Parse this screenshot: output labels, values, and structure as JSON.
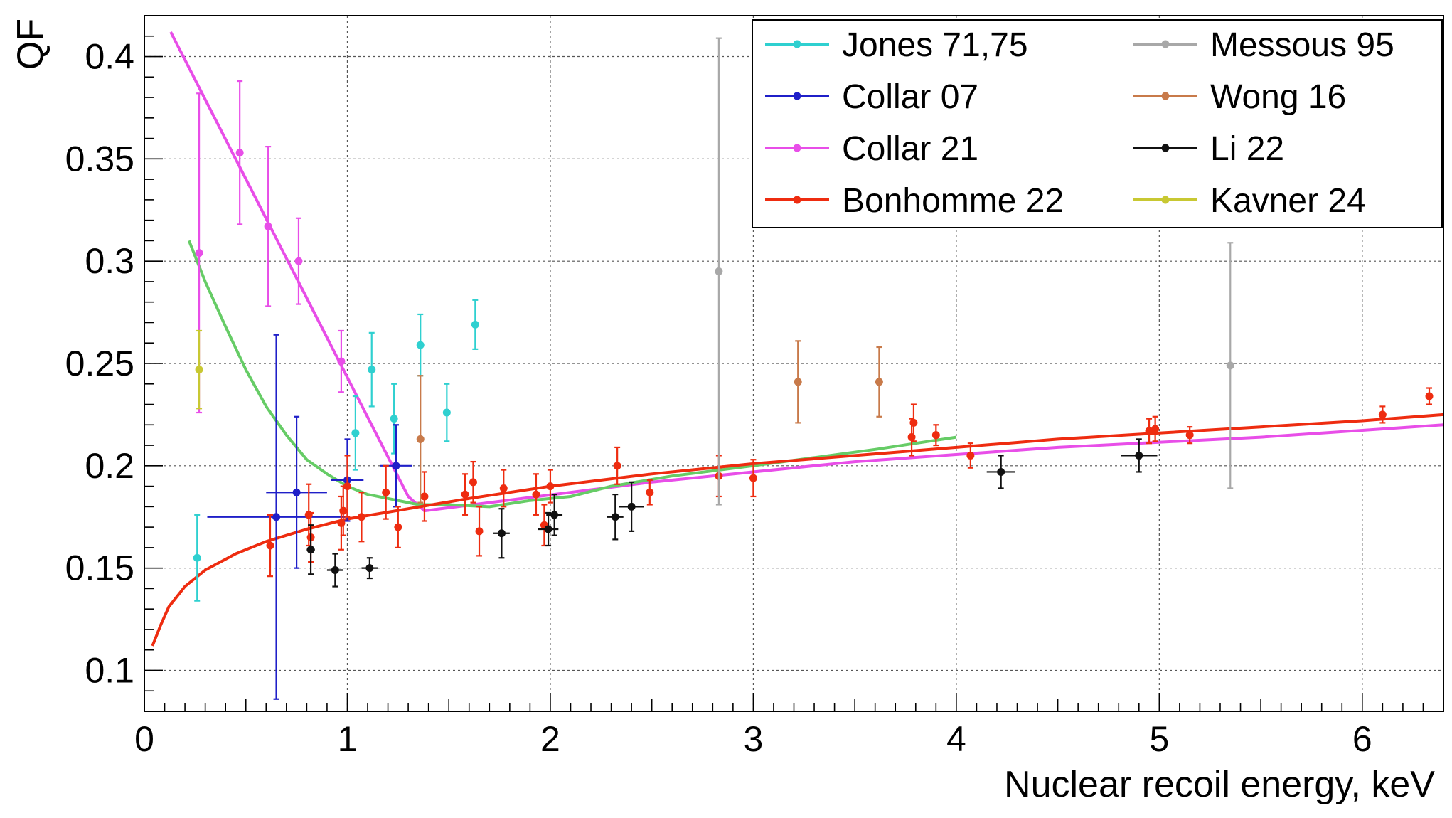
{
  "chart_data": {
    "type": "scatter",
    "xlabel": "Nuclear recoil energy, keV",
    "ylabel": "QF",
    "xlim": [
      0,
      6.4
    ],
    "ylim": [
      0.08,
      0.42
    ],
    "x_ticks": [
      "0",
      "1",
      "2",
      "3",
      "4",
      "5",
      "6"
    ],
    "y_ticks": [
      "0.1",
      "0.15",
      "0.2",
      "0.25",
      "0.3",
      "0.35",
      "0.4"
    ],
    "grid": true,
    "legend": {
      "placement": "top-right",
      "entries": [
        "Jones 71,75",
        "Collar 07",
        "Collar 21",
        "Bonhomme 22",
        "Messous 95",
        "Wong 16",
        "Li 22",
        "Kavner 24"
      ]
    },
    "series": [
      {
        "name": "Jones 71,75",
        "color": "#2fd0d0",
        "points": [
          {
            "x": 0.26,
            "y": 0.155,
            "yerr": 0.021
          },
          {
            "x": 1.04,
            "y": 0.216,
            "yerr": 0.018
          },
          {
            "x": 1.12,
            "y": 0.247,
            "yerr": 0.018
          },
          {
            "x": 1.23,
            "y": 0.223,
            "yerr": 0.017
          },
          {
            "x": 1.36,
            "y": 0.259,
            "yerr": 0.015
          },
          {
            "x": 1.49,
            "y": 0.226,
            "yerr": 0.014
          },
          {
            "x": 1.63,
            "y": 0.269,
            "yerr": 0.012
          }
        ]
      },
      {
        "name": "Collar 07",
        "color": "#1f1fc8",
        "points": [
          {
            "x": 0.65,
            "y": 0.175,
            "yerr": 0.089,
            "xerr": 0.34
          },
          {
            "x": 0.75,
            "y": 0.187,
            "yerr": 0.037,
            "xerr": 0.15
          },
          {
            "x": 1.0,
            "y": 0.193,
            "yerr": 0.02,
            "xerr": 0.08
          },
          {
            "x": 1.24,
            "y": 0.2,
            "yerr": 0.02,
            "xerr": 0.08
          }
        ]
      },
      {
        "name": "Collar 21",
        "color": "#e84ee8",
        "points": [
          {
            "x": 0.27,
            "y": 0.304,
            "yerr": 0.078
          },
          {
            "x": 0.47,
            "y": 0.353,
            "yerr": 0.035
          },
          {
            "x": 0.61,
            "y": 0.317,
            "yerr": 0.039
          },
          {
            "x": 0.76,
            "y": 0.3,
            "yerr": 0.021
          },
          {
            "x": 0.97,
            "y": 0.251,
            "yerr": 0.015
          }
        ]
      },
      {
        "name": "Bonhomme 22",
        "color": "#ee2c10",
        "points": [
          {
            "x": 0.62,
            "y": 0.161,
            "yerr": 0.015
          },
          {
            "x": 0.81,
            "y": 0.176,
            "yerr": 0.015
          },
          {
            "x": 0.82,
            "y": 0.165,
            "yerr": 0.012
          },
          {
            "x": 0.97,
            "y": 0.172,
            "yerr": 0.013
          },
          {
            "x": 0.98,
            "y": 0.178,
            "yerr": 0.012
          },
          {
            "x": 1.0,
            "y": 0.19,
            "yerr": 0.015
          },
          {
            "x": 1.07,
            "y": 0.175,
            "yerr": 0.012
          },
          {
            "x": 1.19,
            "y": 0.187,
            "yerr": 0.013
          },
          {
            "x": 1.25,
            "y": 0.17,
            "yerr": 0.01
          },
          {
            "x": 1.38,
            "y": 0.185,
            "yerr": 0.012
          },
          {
            "x": 1.58,
            "y": 0.186,
            "yerr": 0.01
          },
          {
            "x": 1.62,
            "y": 0.192,
            "yerr": 0.01
          },
          {
            "x": 1.65,
            "y": 0.168,
            "yerr": 0.012
          },
          {
            "x": 1.77,
            "y": 0.189,
            "yerr": 0.009
          },
          {
            "x": 1.93,
            "y": 0.186,
            "yerr": 0.01
          },
          {
            "x": 1.97,
            "y": 0.171,
            "yerr": 0.01
          },
          {
            "x": 2.0,
            "y": 0.19,
            "yerr": 0.008
          },
          {
            "x": 2.33,
            "y": 0.2,
            "yerr": 0.009
          },
          {
            "x": 2.49,
            "y": 0.187,
            "yerr": 0.006
          },
          {
            "x": 2.83,
            "y": 0.195,
            "yerr": 0.01
          },
          {
            "x": 3.0,
            "y": 0.194,
            "yerr": 0.009
          },
          {
            "x": 3.78,
            "y": 0.214,
            "yerr": 0.009
          },
          {
            "x": 3.79,
            "y": 0.221,
            "yerr": 0.009
          },
          {
            "x": 3.9,
            "y": 0.215,
            "yerr": 0.005
          },
          {
            "x": 4.07,
            "y": 0.205,
            "yerr": 0.006
          },
          {
            "x": 4.95,
            "y": 0.217,
            "yerr": 0.006
          },
          {
            "x": 4.98,
            "y": 0.218,
            "yerr": 0.006
          },
          {
            "x": 5.15,
            "y": 0.215,
            "yerr": 0.004
          },
          {
            "x": 6.1,
            "y": 0.225,
            "yerr": 0.004
          },
          {
            "x": 6.33,
            "y": 0.234,
            "yerr": 0.004
          }
        ]
      },
      {
        "name": "Messous 95",
        "color": "#a8a8a8",
        "points": [
          {
            "x": 2.83,
            "y": 0.295,
            "yerr": 0.114
          },
          {
            "x": 5.35,
            "y": 0.249,
            "yerr": 0.06
          }
        ]
      },
      {
        "name": "Wong 16",
        "color": "#c87a4a",
        "points": [
          {
            "x": 1.36,
            "y": 0.213,
            "yerr": 0.031
          },
          {
            "x": 3.22,
            "y": 0.241,
            "yerr": 0.02
          },
          {
            "x": 3.62,
            "y": 0.241,
            "yerr": 0.017
          }
        ]
      },
      {
        "name": "Li 22",
        "color": "#111111",
        "points": [
          {
            "x": 0.82,
            "y": 0.159,
            "yerr": 0.012,
            "xerr": 0.02
          },
          {
            "x": 0.94,
            "y": 0.149,
            "yerr": 0.008,
            "xerr": 0.04
          },
          {
            "x": 1.11,
            "y": 0.15,
            "yerr": 0.005,
            "xerr": 0.04
          },
          {
            "x": 1.76,
            "y": 0.167,
            "yerr": 0.012,
            "xerr": 0.04
          },
          {
            "x": 1.99,
            "y": 0.169,
            "yerr": 0.008,
            "xerr": 0.05
          },
          {
            "x": 2.02,
            "y": 0.176,
            "yerr": 0.01,
            "xerr": 0.04
          },
          {
            "x": 2.32,
            "y": 0.175,
            "yerr": 0.011,
            "xerr": 0.04
          },
          {
            "x": 2.4,
            "y": 0.18,
            "yerr": 0.012,
            "xerr": 0.06
          },
          {
            "x": 4.22,
            "y": 0.197,
            "yerr": 0.008,
            "xerr": 0.07
          },
          {
            "x": 4.9,
            "y": 0.205,
            "yerr": 0.008,
            "xerr": 0.09
          }
        ]
      },
      {
        "name": "Kavner 24",
        "color": "#c8c832",
        "points": [
          {
            "x": 0.27,
            "y": 0.247,
            "yerr": 0.019
          }
        ]
      }
    ],
    "curves": [
      {
        "color": "#e84ee8",
        "points": [
          [
            0.13,
            0.412
          ],
          [
            1.3,
            0.185
          ],
          [
            1.38,
            0.178
          ],
          [
            1.7,
            0.182
          ],
          [
            2.5,
            0.192
          ],
          [
            3.5,
            0.202
          ],
          [
            4.5,
            0.209
          ],
          [
            5.5,
            0.214
          ],
          [
            6.4,
            0.22
          ]
        ]
      },
      {
        "color": "#66cc66",
        "points": [
          [
            0.22,
            0.31
          ],
          [
            0.3,
            0.29
          ],
          [
            0.4,
            0.268
          ],
          [
            0.5,
            0.247
          ],
          [
            0.6,
            0.229
          ],
          [
            0.7,
            0.215
          ],
          [
            0.8,
            0.203
          ],
          [
            0.9,
            0.196
          ],
          [
            1.0,
            0.19
          ],
          [
            1.1,
            0.186
          ],
          [
            1.2,
            0.184
          ],
          [
            1.35,
            0.181
          ],
          [
            1.5,
            0.181
          ],
          [
            1.7,
            0.18
          ],
          [
            1.9,
            0.183
          ],
          [
            2.1,
            0.185
          ],
          [
            2.3,
            0.19
          ],
          [
            2.6,
            0.195
          ],
          [
            3.0,
            0.2
          ],
          [
            3.3,
            0.204
          ],
          [
            3.6,
            0.208
          ],
          [
            3.8,
            0.211
          ],
          [
            4.0,
            0.214
          ]
        ]
      },
      {
        "color": "#ee2c10",
        "points": [
          [
            0.04,
            0.112
          ],
          [
            0.08,
            0.122
          ],
          [
            0.12,
            0.131
          ],
          [
            0.2,
            0.141
          ],
          [
            0.3,
            0.149
          ],
          [
            0.45,
            0.157
          ],
          [
            0.6,
            0.163
          ],
          [
            0.8,
            0.169
          ],
          [
            1.0,
            0.174
          ],
          [
            1.3,
            0.179
          ],
          [
            1.6,
            0.184
          ],
          [
            2.0,
            0.19
          ],
          [
            2.5,
            0.196
          ],
          [
            3.0,
            0.201
          ],
          [
            3.5,
            0.205
          ],
          [
            4.0,
            0.209
          ],
          [
            4.5,
            0.213
          ],
          [
            5.0,
            0.216
          ],
          [
            5.5,
            0.219
          ],
          [
            6.0,
            0.222
          ],
          [
            6.4,
            0.225
          ]
        ]
      }
    ]
  }
}
